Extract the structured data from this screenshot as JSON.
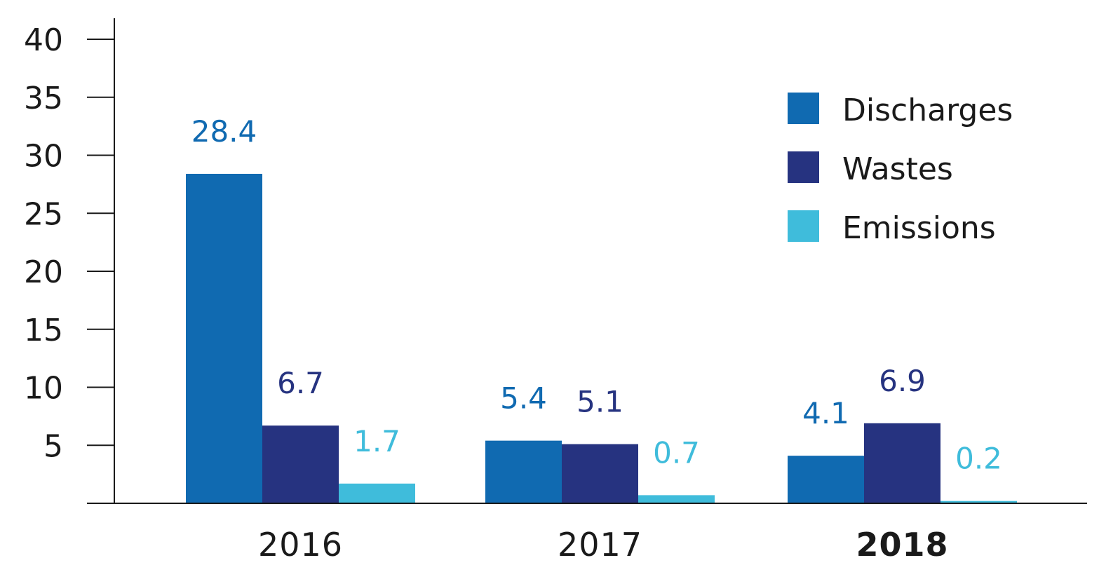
{
  "chart_data": {
    "type": "bar",
    "categories": [
      "2016",
      "2017",
      "2018"
    ],
    "highlight_category": "2018",
    "series": [
      {
        "name": "Discharges",
        "values": [
          28.4,
          5.4,
          4.1
        ],
        "labels": [
          "28.4",
          "5.4",
          "4.1"
        ],
        "color": "#106AB1"
      },
      {
        "name": "Wastes",
        "values": [
          6.7,
          5.1,
          6.9
        ],
        "labels": [
          "6.7",
          "5.1",
          "6.9"
        ],
        "color": "#263380"
      },
      {
        "name": "Emissions",
        "values": [
          1.7,
          0.7,
          0.2
        ],
        "labels": [
          "1.7",
          "0.7",
          "0.2"
        ],
        "color": "#3FBCDB"
      }
    ],
    "yticks": [
      "5",
      "10",
      "15",
      "20",
      "25",
      "30",
      "35",
      "40"
    ],
    "ylim": [
      0,
      40
    ],
    "title": "",
    "xlabel": "",
    "ylabel": "",
    "grid": false,
    "legend_position": "top-right"
  }
}
